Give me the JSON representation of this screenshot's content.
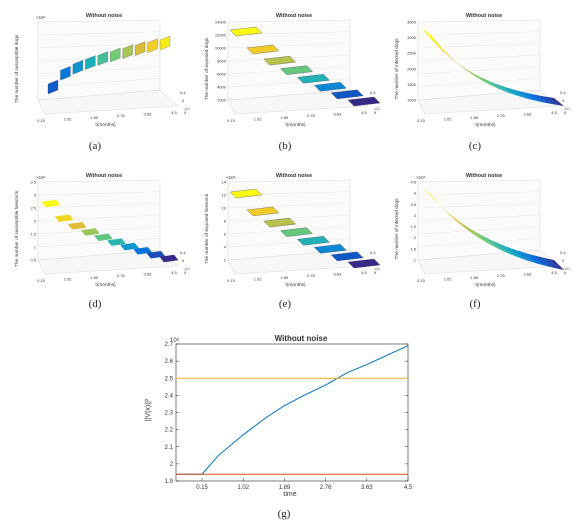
{
  "panels": [
    {
      "caption": "(a)",
      "title": "Without noise",
      "zlabel": "The number of susceptible dogs",
      "xlabel": "t(months)",
      "ylabel": "x",
      "zexp": "×10⁴",
      "xticks": [
        "0.15",
        "1.02",
        "1.89",
        "2.76",
        "3.63",
        "4.5"
      ],
      "yticks": [
        "0.4",
        "0",
        "-0.4"
      ],
      "zticks": [
        "",
        "",
        "",
        "",
        "",
        ""
      ]
    },
    {
      "caption": "(b)",
      "title": "Without noise",
      "zlabel": "The number of exposed dogs",
      "xlabel": "t(months)",
      "ylabel": "x",
      "zexp": "",
      "xticks": [
        "0.15",
        "1.02",
        "1.89",
        "2.76",
        "3.63",
        "4.5"
      ],
      "yticks": [
        "0.4",
        "0",
        "-0.4"
      ],
      "zticks": [
        "14000",
        "12000",
        "10000",
        "8000",
        "6000",
        "4000",
        "2000"
      ]
    },
    {
      "caption": "(c)",
      "title": "Without noise",
      "zlabel": "The number of infected dogs",
      "xlabel": "t(months)",
      "ylabel": "x",
      "zexp": "",
      "xticks": [
        "0.15",
        "1.02",
        "1.89",
        "2.76",
        "3.63",
        "4.5"
      ],
      "yticks": [
        "0.4",
        "0",
        "-0.4"
      ],
      "zticks": [
        "3500",
        "3000",
        "2500",
        "2000",
        "1500",
        "1000"
      ]
    },
    {
      "caption": "(d)",
      "title": "Without noise",
      "zlabel": "The number of susceptible livestock",
      "xlabel": "t(months)",
      "ylabel": "x",
      "zexp": "×10⁴",
      "xticks": [
        "0.15",
        "1.02",
        "1.89",
        "2.76",
        "3.63",
        "4.5"
      ],
      "yticks": [
        "0.4",
        "0",
        "-0.4"
      ],
      "zticks": [
        "3.5",
        "3",
        "2.5",
        "2",
        "1.5",
        "1",
        "0.5"
      ]
    },
    {
      "caption": "(e)",
      "title": "Without noise",
      "zlabel": "The number of exposed livestock",
      "xlabel": "t(months)",
      "ylabel": "x",
      "zexp": "×10⁴",
      "xticks": [
        "0.15",
        "1.02",
        "1.89",
        "2.76",
        "3.63",
        "4.5"
      ],
      "yticks": [
        "0.4",
        "0",
        "-0.4"
      ],
      "zticks": [
        "14",
        "12",
        "10",
        "8",
        "6",
        "4",
        "2"
      ]
    },
    {
      "caption": "(f)",
      "title": "Without noise",
      "zlabel": "The number of infected dogs",
      "xlabel": "t(months)",
      "ylabel": "x",
      "zexp": "×10⁴",
      "xticks": [
        "0.15",
        "1.02",
        "1.89",
        "2.76",
        "3.63",
        "4.5"
      ],
      "yticks": [
        "0.4",
        "0",
        "-0.4"
      ],
      "zticks": [
        "4.5",
        "4",
        "3.5",
        "3",
        "2.5",
        "2",
        "1.5",
        "1"
      ]
    }
  ],
  "chart_data": {
    "type": "line",
    "title": "Without noise",
    "xlabel": "time",
    "ylabel": "||V(x)||²",
    "yexp": "10⁸",
    "caption": "(g)",
    "xticks": [
      "0.15",
      "1.02",
      "1.89",
      "2.76",
      "3.63",
      "4.5"
    ],
    "yticks": [
      "1.9",
      "2",
      "2.1",
      "2.2",
      "2.3",
      "2.4",
      "2.5",
      "2.6",
      "2.7"
    ],
    "xlim": [
      -0.4,
      4.5
    ],
    "ylim": [
      1.9,
      2.7
    ],
    "series": [
      {
        "color": "#0072BD",
        "x": [
          -0.4,
          0.15,
          0.5,
          1.02,
          1.5,
          1.89,
          2.3,
          2.76,
          3.2,
          3.63,
          4.1,
          4.5
        ],
        "y": [
          1.94,
          1.94,
          2.05,
          2.17,
          2.27,
          2.34,
          2.4,
          2.46,
          2.53,
          2.58,
          2.64,
          2.69
        ]
      },
      {
        "color": "#EDB120",
        "x": [
          -0.4,
          4.5
        ],
        "y": [
          2.5,
          2.5
        ]
      },
      {
        "color": "#D95319",
        "x": [
          -0.4,
          4.5
        ],
        "y": [
          1.94,
          1.94
        ]
      }
    ]
  }
}
